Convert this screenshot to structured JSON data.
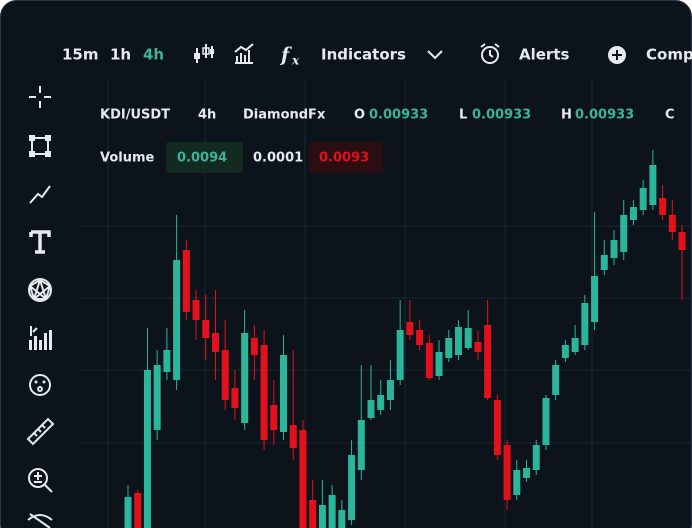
{
  "toolbar": {
    "intervals": [
      "15m",
      "1h",
      "4h"
    ],
    "active_interval": 2,
    "indicators": "Indicators",
    "alerts": "Alerts",
    "compare": "Comp"
  },
  "legend": {
    "symbol": "KDI/USDT",
    "interval": "4h",
    "source": "DiamondFx",
    "ohlc": [
      {
        "key": "O",
        "value": "0.00933"
      },
      {
        "key": "L",
        "value": "0.00933"
      },
      {
        "key": "H",
        "value": "0.00933"
      },
      {
        "key": "C",
        "value": ""
      }
    ]
  },
  "volume": {
    "label": "Volume",
    "values": [
      "0.0094",
      "0.0001",
      "0.0093"
    ]
  },
  "chart_data": {
    "type": "candlestick",
    "up_color": "#2bb59a",
    "down_color": "#e3111b",
    "ylim": [
      0.008208,
      0.01
    ],
    "open": [
      0.008208,
      0.008348,
      0.008208,
      0.0086,
      0.008832,
      0.0088,
      0.00932,
      0.00912,
      0.00904,
      0.008988,
      0.00892,
      0.008768,
      0.008628,
      0.008968,
      0.00894,
      0.0087,
      0.008592,
      0.00862,
      0.0086,
      0.00832,
      0.008208,
      0.008208,
      0.008208,
      0.00824,
      0.00844,
      0.008648,
      0.00868,
      0.00872,
      0.0088,
      0.009032,
      0.009,
      0.008948,
      0.008816,
      0.008888,
      0.0089,
      0.008928,
      0.008952,
      0.00902,
      0.00872,
      0.00854,
      0.00834,
      0.008408,
      0.00844,
      0.00854,
      0.00874,
      0.008888,
      0.008912,
      0.00894,
      0.009032,
      0.00924,
      0.009288,
      0.009312,
      0.00944,
      0.00948,
      0.0095,
      0.009528,
      0.00946,
      0.009392
    ],
    "high": [
      0.00838,
      0.00836,
      0.009008,
      0.00892,
      0.009008,
      0.00946,
      0.00936,
      0.00916,
      0.00914,
      0.00916,
      0.00904,
      0.00884,
      0.00908,
      0.00902,
      0.009,
      0.0088,
      0.00898,
      0.00892,
      0.00864,
      0.0084,
      0.0084,
      0.00838,
      0.00832,
      0.00856,
      0.00886,
      0.00886,
      0.0088,
      0.00888,
      0.00912,
      0.00912,
      0.00904,
      0.00898,
      0.00896,
      0.009,
      0.00904,
      0.00908,
      0.009,
      0.00912,
      0.00874,
      0.00856,
      0.00848,
      0.00848,
      0.00856,
      0.00874,
      0.00888,
      0.00896,
      0.00902,
      0.00914,
      0.009472,
      0.00936,
      0.0094,
      0.00952,
      0.00952,
      0.0096,
      0.00972,
      0.00958,
      0.00952,
      0.00942
    ],
    "low": [
      0.008208,
      0.008208,
      0.008208,
      0.00856,
      0.0088,
      0.00876,
      0.00904,
      0.00896,
      0.00888,
      0.0088,
      0.00868,
      0.00864,
      0.0086,
      0.0088,
      0.00852,
      0.00854,
      0.00856,
      0.00848,
      0.008208,
      0.008208,
      0.008208,
      0.008208,
      0.008208,
      0.00822,
      0.0084,
      0.00864,
      0.00866,
      0.00868,
      0.00878,
      0.00896,
      0.00892,
      0.0088,
      0.0088,
      0.008872,
      0.00888,
      0.00892,
      0.00888,
      0.00872,
      0.00848,
      0.00828,
      0.00832,
      0.008392,
      0.00842,
      0.00852,
      0.00872,
      0.008872,
      0.0089,
      0.00892,
      0.009,
      0.00922,
      0.00926,
      0.00928,
      0.00942,
      0.00946,
      0.00948,
      0.00944,
      0.00936,
      0.00912
    ],
    "close": [
      0.008332,
      0.008208,
      0.00884,
      0.00886,
      0.00892,
      0.00928,
      0.009072,
      0.00904,
      0.008968,
      0.008912,
      0.00872,
      0.008688,
      0.008988,
      0.0089,
      0.00856,
      0.0086,
      0.0089,
      0.008528,
      0.008208,
      0.008208,
      0.0083,
      0.00834,
      0.00828,
      0.0085,
      0.00864,
      0.00872,
      0.00874,
      0.0088,
      0.009,
      0.00898,
      0.00894,
      0.008808,
      0.008912,
      0.008968,
      0.009012,
      0.009008,
      0.008912,
      0.008728,
      0.0085,
      0.00832,
      0.00844,
      0.008448,
      0.00854,
      0.008728,
      0.00886,
      0.00894,
      0.008968,
      0.009108,
      0.009216,
      0.0093,
      0.00936,
      0.00946,
      0.009492,
      0.009568,
      0.00966,
      0.00946,
      0.009392,
      0.00932
    ]
  }
}
